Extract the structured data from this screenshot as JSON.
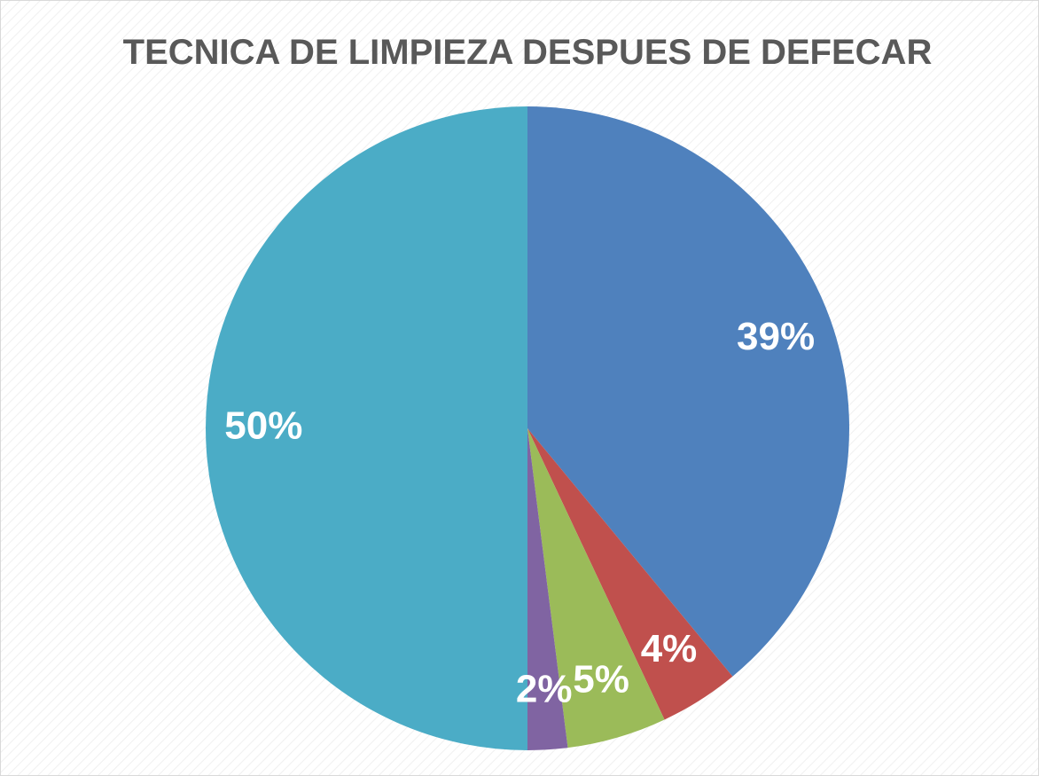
{
  "chart_data": {
    "type": "pie",
    "title": "TECNICA DE LIMPIEZA DESPUES DE DEFECAR",
    "values": [
      39,
      4,
      5,
      2,
      50
    ],
    "value_labels": [
      "39%",
      "4%",
      "5%",
      "2%",
      "50%"
    ],
    "colors": [
      "#4f81bd",
      "#c0504d",
      "#9bbb59",
      "#8064a2",
      "#4bacc6"
    ]
  }
}
